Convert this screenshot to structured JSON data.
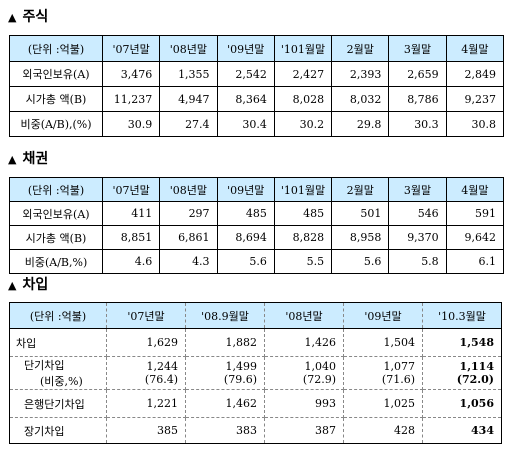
{
  "stocks": {
    "title": "주식",
    "header": [
      "(단위 :억불)",
      "'07년말",
      "'08년말",
      "'09년말",
      "'101월말",
      "2월말",
      "3월말",
      "4월말"
    ],
    "rows": [
      [
        "외국인보유(A)",
        "3,476",
        "1,355",
        "2,542",
        "2,427",
        "2,393",
        "2,659",
        "2,849"
      ],
      [
        "시가총 액(B)",
        "11,237",
        "4,947",
        "8,364",
        "8,028",
        "8,032",
        "8,786",
        "9,237"
      ],
      [
        "비중(A/B),(%)",
        "30.9",
        "27.4",
        "30.4",
        "30.2",
        "29.8",
        "30.3",
        "30.8"
      ]
    ]
  },
  "bonds": {
    "title": "채권",
    "header": [
      "(단위 :억불)",
      "'07년말",
      "'08년말",
      "'09년말",
      "'101월말",
      "2월말",
      "3월말",
      "4월말"
    ],
    "rows": [
      [
        "외국인보유(A)",
        "411",
        "297",
        "485",
        "485",
        "501",
        "546",
        "591"
      ],
      [
        "시가총 액(B)",
        "8,851",
        "6,861",
        "8,694",
        "8,828",
        "8,958",
        "9,370",
        "9,642"
      ],
      [
        "비중(A/B,%)",
        "4.6",
        "4.3",
        "5.6",
        "5.5",
        "5.6",
        "5.8",
        "6.1"
      ]
    ]
  },
  "borrowing": {
    "title": "차입",
    "header": [
      "(단위 :억불)",
      "'07년말",
      "'08.9월말",
      "'08년말",
      "'09년말",
      "'10.3월말"
    ],
    "rows": [
      [
        "차입",
        "1,629",
        "1,882",
        "1,426",
        "1,504",
        "1,548"
      ],
      [
        "단기차입",
        "1,244",
        "1,499",
        "1,040",
        "1,077",
        "1,114"
      ],
      [
        "(비중,%)",
        "(76.4)",
        "(79.6)",
        "(72.9)",
        "(71.6)",
        "(72.0)"
      ],
      [
        "은행단기차입",
        "1,221",
        "1,462",
        "993",
        "1,025",
        "1,056"
      ],
      [
        "장기차입",
        "385",
        "383",
        "387",
        "428",
        "434"
      ]
    ]
  }
}
